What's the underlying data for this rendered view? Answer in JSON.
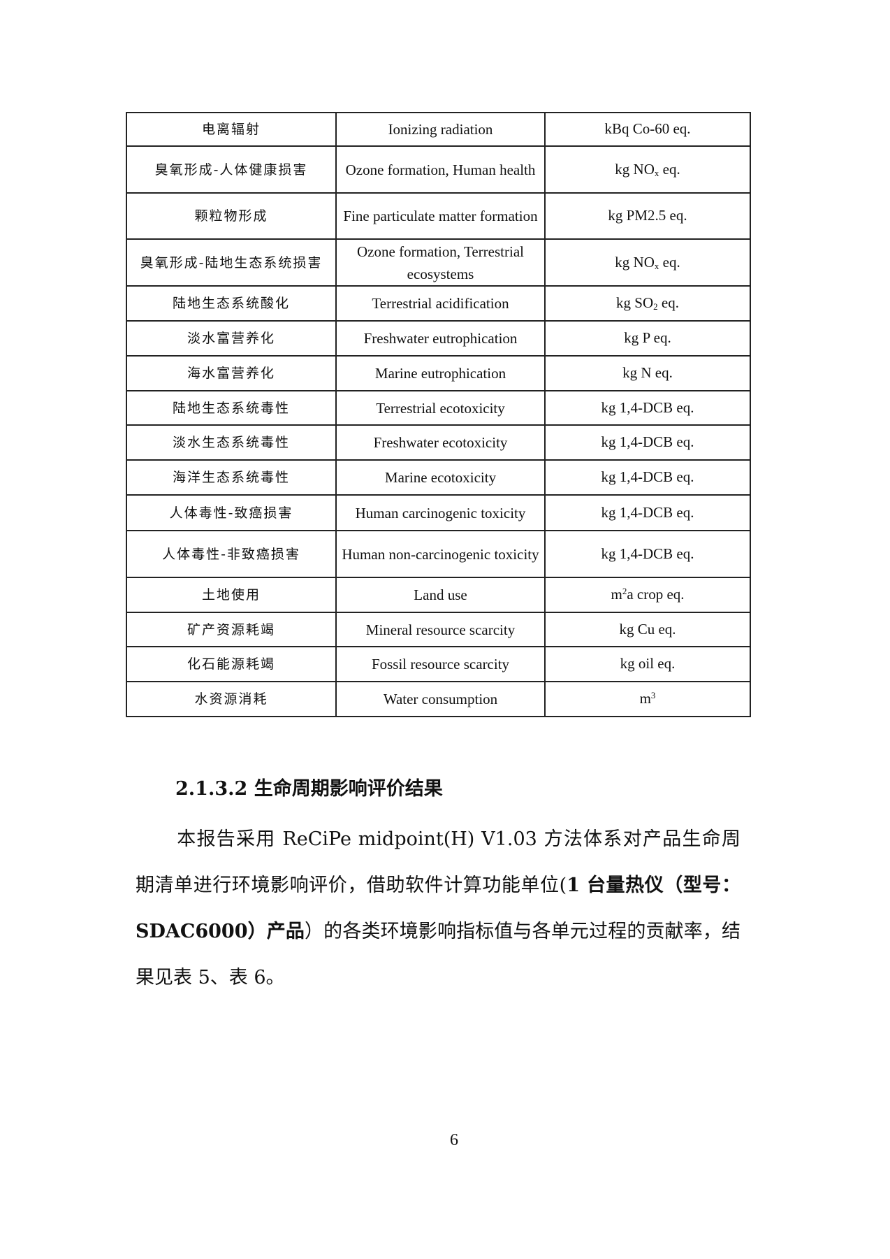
{
  "table": {
    "rows": [
      {
        "zh": "电离辐射",
        "en": "Ionizing radiation",
        "unit": {
          "pre": "kBq Co-60 eq.",
          "sub": "",
          "sup": "",
          "post": ""
        }
      },
      {
        "zh": "臭氧形成-人体健康损害",
        "en": "Ozone formation, Human health",
        "unit": {
          "pre": "kg NO",
          "sub": "x",
          "sup": "",
          "post": " eq."
        }
      },
      {
        "zh": "颗粒物形成",
        "en": "Fine particulate matter formation",
        "unit": {
          "pre": "kg PM2.5 eq.",
          "sub": "",
          "sup": "",
          "post": ""
        }
      },
      {
        "zh": "臭氧形成-陆地生态系统损害",
        "en": "Ozone formation, Terrestrial ecosystems",
        "unit": {
          "pre": "kg NO",
          "sub": "x",
          "sup": "",
          "post": " eq."
        }
      },
      {
        "zh": "陆地生态系统酸化",
        "en": "Terrestrial acidification",
        "unit": {
          "pre": "kg SO",
          "sub": "2",
          "sup": "",
          "post": " eq."
        }
      },
      {
        "zh": "淡水富营养化",
        "en": "Freshwater eutrophication",
        "unit": {
          "pre": "kg P eq.",
          "sub": "",
          "sup": "",
          "post": ""
        }
      },
      {
        "zh": "海水富营养化",
        "en": "Marine eutrophication",
        "unit": {
          "pre": "kg N eq.",
          "sub": "",
          "sup": "",
          "post": ""
        }
      },
      {
        "zh": "陆地生态系统毒性",
        "en": "Terrestrial ecotoxicity",
        "unit": {
          "pre": "kg 1,4-DCB eq.",
          "sub": "",
          "sup": "",
          "post": ""
        }
      },
      {
        "zh": "淡水生态系统毒性",
        "en": "Freshwater ecotoxicity",
        "unit": {
          "pre": "kg 1,4-DCB eq.",
          "sub": "",
          "sup": "",
          "post": ""
        }
      },
      {
        "zh": "海洋生态系统毒性",
        "en": "Marine ecotoxicity",
        "unit": {
          "pre": "kg 1,4-DCB eq.",
          "sub": "",
          "sup": "",
          "post": ""
        }
      },
      {
        "zh": "人体毒性-致癌损害",
        "en": "Human carcinogenic toxicity",
        "unit": {
          "pre": "kg 1,4-DCB eq.",
          "sub": "",
          "sup": "",
          "post": ""
        }
      },
      {
        "zh": "人体毒性-非致癌损害",
        "en": "Human non-carcinogenic toxicity",
        "unit": {
          "pre": "kg 1,4-DCB eq.",
          "sub": "",
          "sup": "",
          "post": ""
        }
      },
      {
        "zh": "土地使用",
        "en": "Land use",
        "unit": {
          "pre": "m",
          "sub": "",
          "sup": "2",
          "post": "a crop eq."
        }
      },
      {
        "zh": "矿产资源耗竭",
        "en": "Mineral resource scarcity",
        "unit": {
          "pre": "kg Cu eq.",
          "sub": "",
          "sup": "",
          "post": ""
        }
      },
      {
        "zh": "化石能源耗竭",
        "en": "Fossil resource scarcity",
        "unit": {
          "pre": "kg oil eq.",
          "sub": "",
          "sup": "",
          "post": ""
        }
      },
      {
        "zh": "水资源消耗",
        "en": "Water consumption",
        "unit": {
          "pre": "m",
          "sub": "",
          "sup": "3",
          "post": ""
        }
      }
    ]
  },
  "section": {
    "heading": "2.1.3.2 生命周期影响评价结果",
    "para_1": "本报告采用 ReCiPe midpoint(H) V1.03 方法体系对产品生命周期清单进行环境影响评价，借助软件计算功能单位(",
    "para_bold": "1 台量热仪（型号：SDAC6000）产品",
    "para_2": "）的各类环境影响指标值与各单元过程的贡献率，结果见表 5、表 6。"
  },
  "page_number": "6"
}
